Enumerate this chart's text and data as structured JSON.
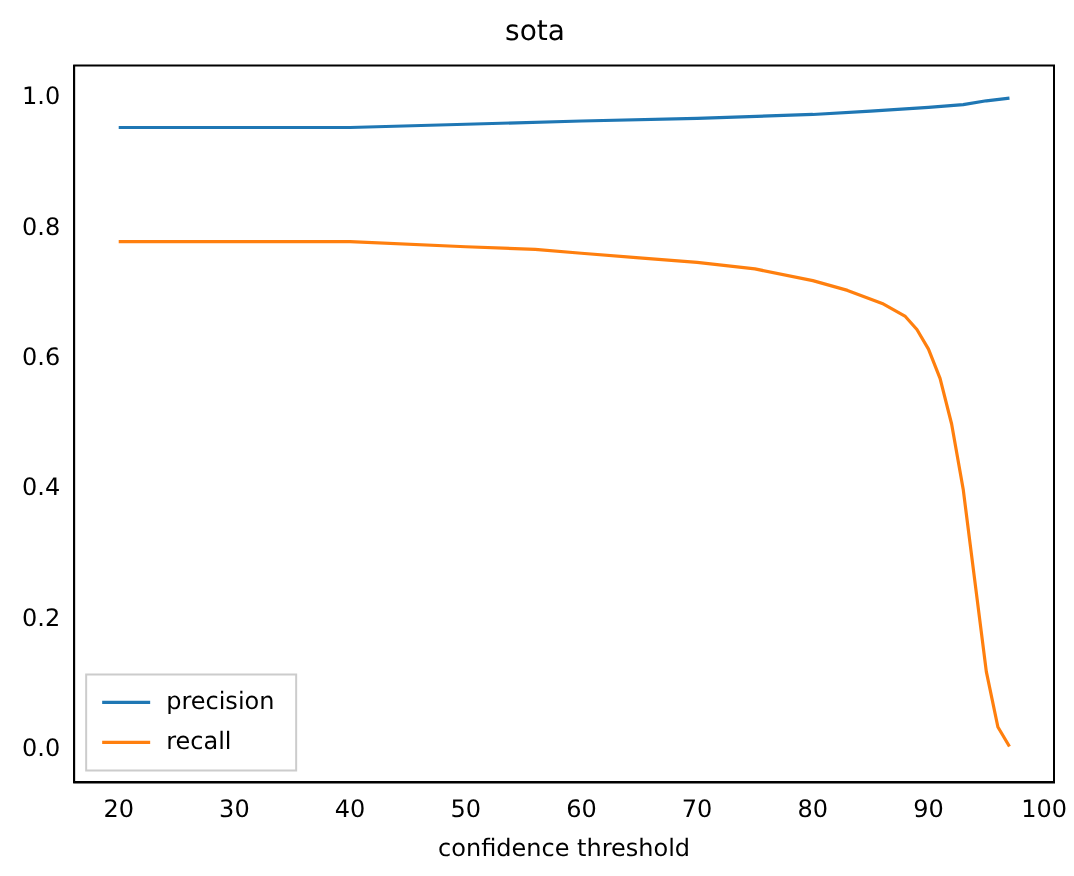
{
  "chart_data": {
    "type": "line",
    "title": "sota",
    "xlabel": "confidence threshold",
    "xlim": [
      16.15,
      100.85
    ],
    "xticks": [
      20,
      30,
      40,
      50,
      60,
      70,
      80,
      90,
      100
    ],
    "ylim": [
      -0.05,
      1.05
    ],
    "yticks": [
      {
        "value": 0,
        "label": "0.0"
      },
      {
        "value": 0.2,
        "label": "0.2"
      },
      {
        "value": 0.4,
        "label": "0.4"
      },
      {
        "value": 0.6,
        "label": "0.6"
      },
      {
        "value": 0.8,
        "label": "0.8"
      },
      {
        "value": 1,
        "label": "1.0"
      }
    ],
    "grid": false,
    "legend": "bottom left",
    "marker": "none",
    "line_style": "solid",
    "series": [
      {
        "name": "precision",
        "color": "#1f77b4",
        "x": [
          20,
          40,
          50,
          60,
          70,
          80,
          85,
          90,
          93,
          95,
          97
        ],
        "values": [
          0.955,
          0.955,
          0.96,
          0.965,
          0.969,
          0.975,
          0.98,
          0.986,
          0.99,
          0.996,
          1.0
        ]
      },
      {
        "name": "recall",
        "color": "#ff7f0e",
        "x": [
          20,
          40,
          50,
          56,
          60,
          65,
          70,
          75,
          80,
          83,
          86,
          88,
          89,
          90,
          91,
          92,
          93,
          94,
          95,
          96,
          97
        ],
        "values": [
          0.78,
          0.78,
          0.772,
          0.768,
          0.762,
          0.755,
          0.748,
          0.738,
          0.72,
          0.705,
          0.685,
          0.665,
          0.645,
          0.615,
          0.57,
          0.5,
          0.4,
          0.26,
          0.12,
          0.035,
          0.005
        ]
      }
    ]
  }
}
